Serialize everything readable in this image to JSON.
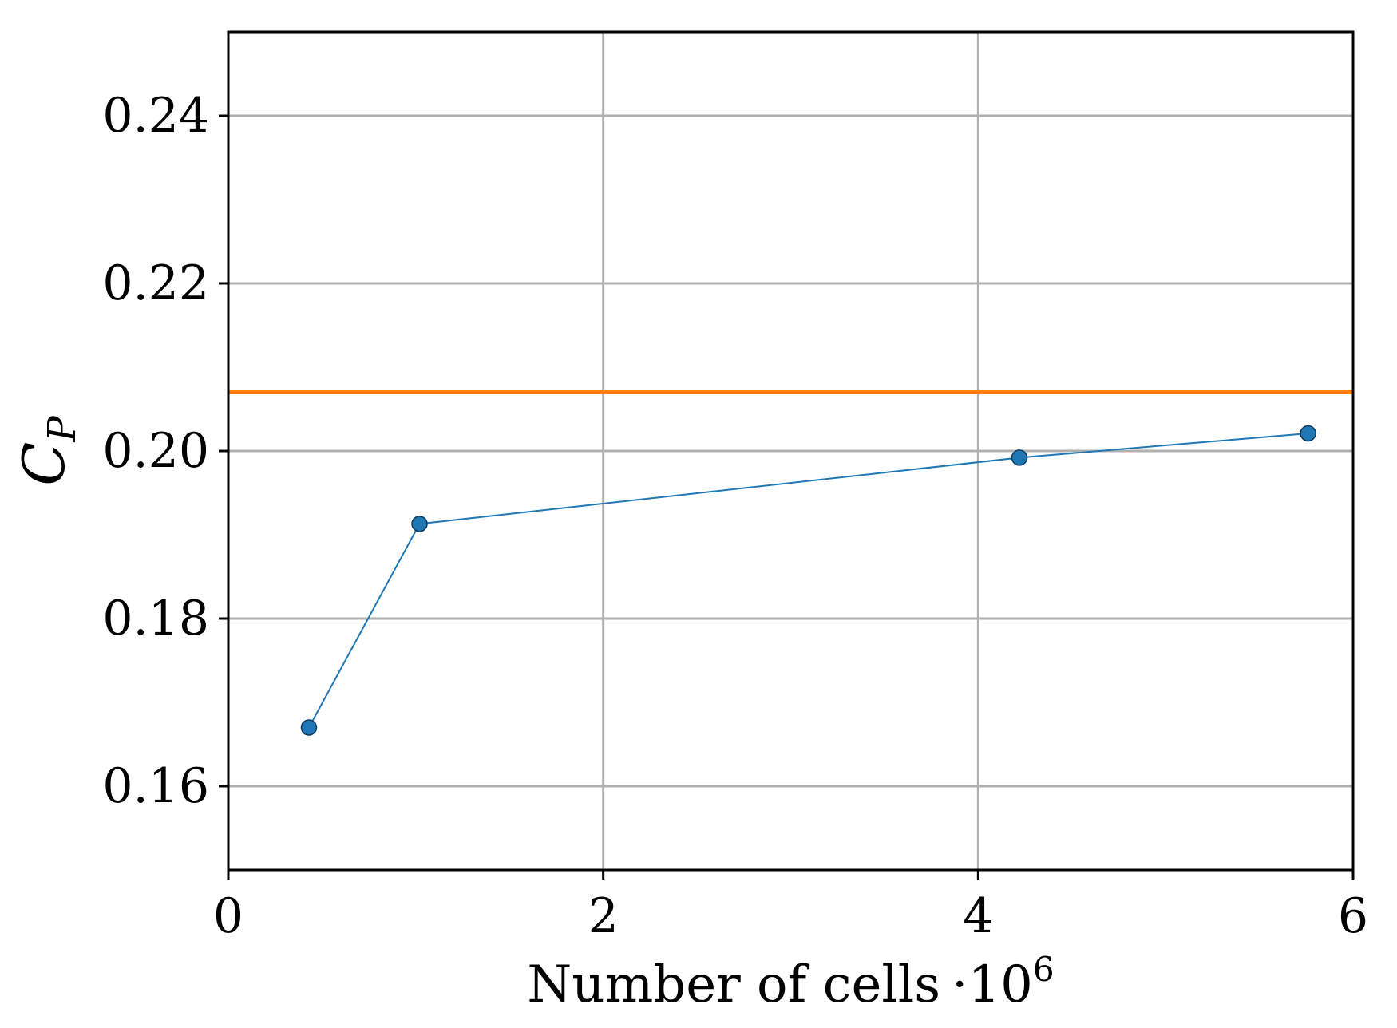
{
  "chart_data": {
    "type": "line",
    "xlabel": "Number of cells",
    "xlabel_multiplier": "·10",
    "xlabel_exponent": "6",
    "ylabel_main": "C",
    "ylabel_sub": "P",
    "xlim": [
      0,
      6
    ],
    "ylim": [
      0.15,
      0.25
    ],
    "x_ticks": [
      0,
      2,
      4,
      6
    ],
    "x_tick_labels": [
      "0",
      "2",
      "4",
      "6"
    ],
    "y_ticks": [
      0.16,
      0.18,
      0.2,
      0.22,
      0.24
    ],
    "y_tick_labels": [
      "0.16",
      "0.18",
      "0.20",
      "0.22",
      "0.24"
    ],
    "grid": true,
    "series": [
      {
        "color": "#1f77b4",
        "x": [
          0.43,
          1.02,
          4.22,
          5.76
        ],
        "y": [
          0.167,
          0.1913,
          0.1992,
          0.2021
        ]
      }
    ],
    "hlines": [
      {
        "y": 0.207,
        "color": "#ff7f0e"
      }
    ]
  }
}
